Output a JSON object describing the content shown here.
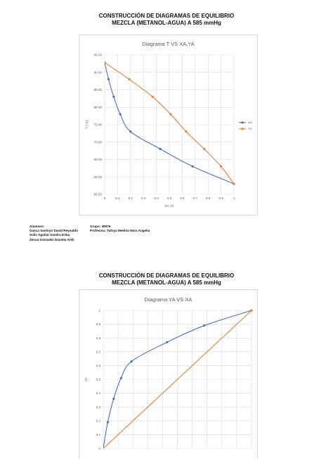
{
  "doc": {
    "title1_line1": "CONSTRUCCIÓN DE DIAGRAMAS DE EQUILIBRIO",
    "title1_line2": "MEZCLA (METANOL-AGUA) A 585 mmHg",
    "title2_line1": "CONSTRUCCIÓN DE DIAGRAMAS DE EQUILIBRIO",
    "title2_line2": "MEZCLA (METANOL-AGUA) A 585 mmHg",
    "students_label": "Alumnos:",
    "students": [
      "Gasca Santoyo David Reynaldo",
      "Solis Aguilar Sandra Erika",
      "Zecua Gonzalez Daniela Areli"
    ],
    "group": "Grupo: 3IM76",
    "professor": "Profesora: Tafoya Medina Nora Angelia"
  },
  "colors": {
    "xa": "#4472C4",
    "ya": "#ED7D31",
    "grid": "#d9d9d9",
    "axis_text": "#595959"
  },
  "chart_data": [
    {
      "type": "line",
      "title": "Diagrama  T VS XA,YA",
      "xlabel": "XA,YA",
      "ylabel": "T (°C)",
      "xlim": [
        0,
        1
      ],
      "ylim": [
        55,
        95
      ],
      "x_ticks": [
        "0",
        "0.1",
        "0.2",
        "0.3",
        "0.4",
        "0.5",
        "0.6",
        "0.7",
        "0.8",
        "0.9",
        "1"
      ],
      "y_ticks": [
        "55.00",
        "60.00",
        "65.00",
        "70.00",
        "75.00",
        "80.00",
        "85.00",
        "90.00",
        "95.00"
      ],
      "legend_position": "right",
      "series": [
        {
          "name": "XA",
          "color": "#4472C4",
          "points": [
            [
              0,
              92.8
            ],
            [
              0.03,
              88
            ],
            [
              0.07,
              83
            ],
            [
              0.12,
              78
            ],
            [
              0.2,
              73
            ],
            [
              0.43,
              68
            ],
            [
              0.68,
              63
            ],
            [
              1,
              58
            ]
          ]
        },
        {
          "name": "YA",
          "color": "#ED7D31",
          "points": [
            [
              0,
              92.8
            ],
            [
              0.19,
              88
            ],
            [
              0.37,
              83
            ],
            [
              0.51,
              78
            ],
            [
              0.63,
              73
            ],
            [
              0.77,
              68
            ],
            [
              0.9,
              63
            ],
            [
              1,
              58
            ]
          ]
        }
      ]
    },
    {
      "type": "line",
      "title": "Diagrama YA VS XA",
      "xlabel": "",
      "ylabel": "YA",
      "xlim": [
        0,
        1
      ],
      "ylim": [
        0,
        1
      ],
      "y_ticks": [
        "0",
        "0.1",
        "0.2",
        "0.3",
        "0.4",
        "0.5",
        "0.6",
        "0.7",
        "0.8",
        "0.9",
        "1"
      ],
      "series": [
        {
          "color": "#4472C4",
          "points": [
            [
              0,
              0
            ],
            [
              0.03,
              0.19
            ],
            [
              0.07,
              0.36
            ],
            [
              0.12,
              0.51
            ],
            [
              0.19,
              0.63
            ],
            [
              0.43,
              0.77
            ],
            [
              0.68,
              0.89
            ],
            [
              1,
              1
            ]
          ]
        },
        {
          "color": "#ED7D31",
          "points": [
            [
              0,
              0
            ],
            [
              1,
              1
            ]
          ]
        }
      ]
    }
  ]
}
